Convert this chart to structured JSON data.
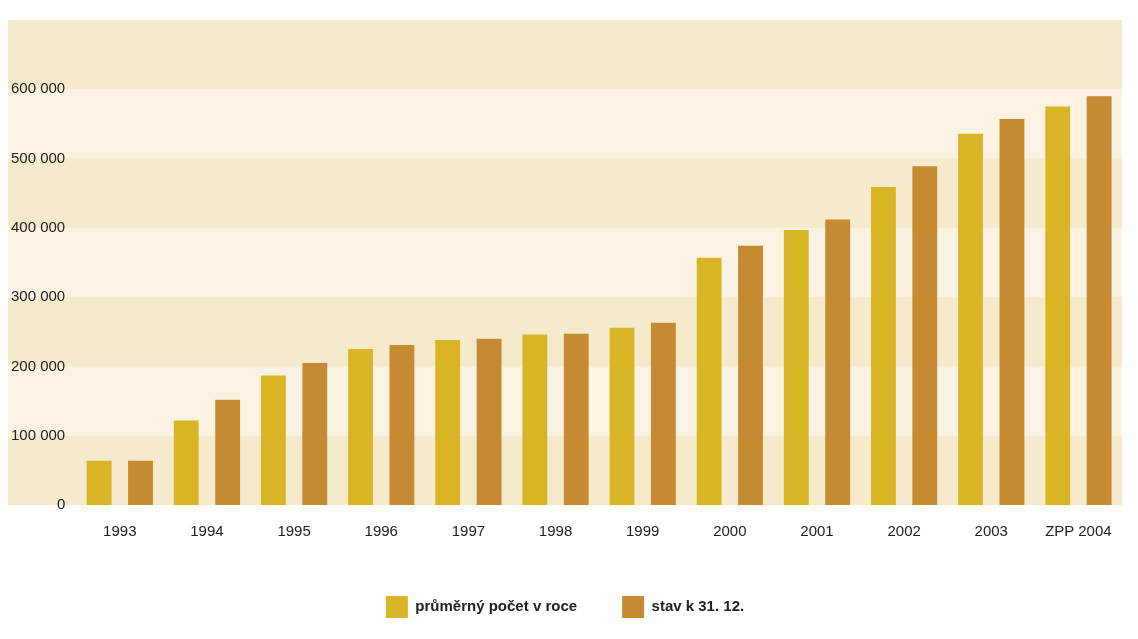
{
  "chart_data": {
    "type": "bar",
    "categories": [
      "1993",
      "1994",
      "1995",
      "1996",
      "1997",
      "1998",
      "1999",
      "2000",
      "2001",
      "2002",
      "2003",
      "ZPP 2004"
    ],
    "series": [
      {
        "name": "průměrný počet v roce",
        "color": "#d9b526",
        "values": [
          64000,
          122000,
          187000,
          225000,
          238000,
          246000,
          256000,
          357000,
          397000,
          459000,
          536000,
          575000
        ]
      },
      {
        "name": "stav k 31. 12.",
        "color": "#c68a32",
        "values": [
          64000,
          152000,
          205000,
          231000,
          240000,
          247000,
          263000,
          374000,
          412000,
          489000,
          557000,
          590000
        ]
      }
    ],
    "ylim": [
      0,
      700000
    ],
    "yticks": [
      0,
      {
        "value": 100000,
        "label": "100 000"
      },
      {
        "value": 200000,
        "label": "200 000"
      },
      {
        "value": 300000,
        "label": "300 000"
      },
      {
        "value": 400000,
        "label": "400 000"
      },
      {
        "value": 500000,
        "label": "500 000"
      },
      {
        "value": 600000,
        "label": "600 000"
      }
    ],
    "bands": [
      {
        "axis": "y",
        "from": 0,
        "to": 100000,
        "color": "#f5eacb"
      },
      {
        "axis": "y",
        "from": 200000,
        "to": 300000,
        "color": "#f5eacb"
      },
      {
        "axis": "y",
        "from": 400000,
        "to": 500000,
        "color": "#f5eacb"
      },
      {
        "axis": "y",
        "from": 600000,
        "to": 700000,
        "color": "#f5eacb"
      }
    ],
    "legend": "bottom"
  }
}
